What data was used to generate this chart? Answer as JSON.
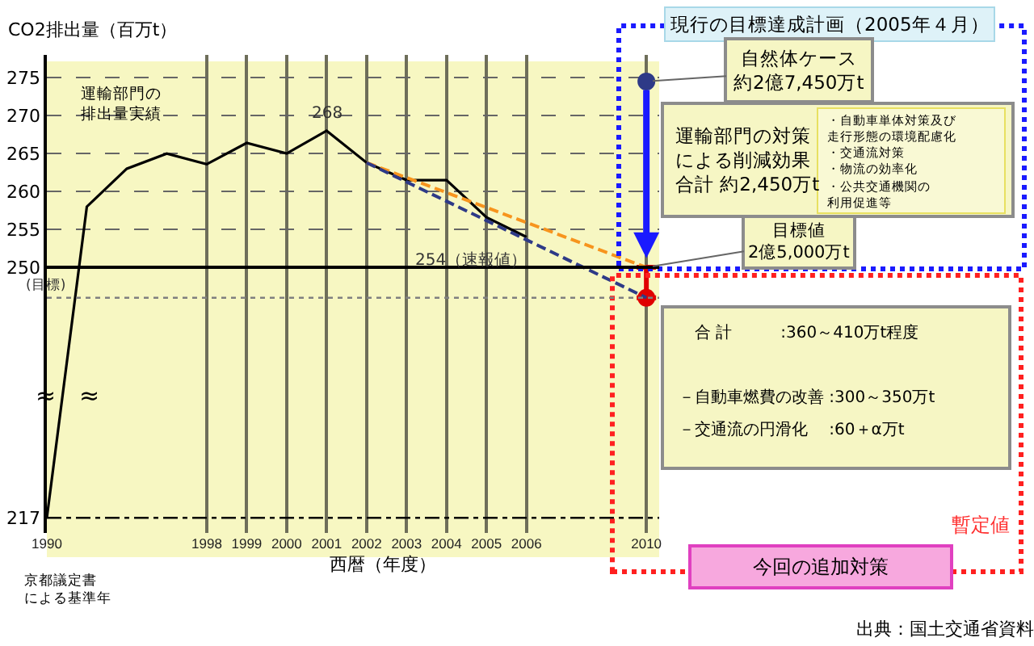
{
  "chart_data": {
    "type": "line",
    "ylabel": "CO2排出量（百万t）",
    "xlabel": "西暦（年度）",
    "categories": [
      "1990",
      null,
      null,
      null,
      "1998",
      "1999",
      "2000",
      "2001",
      "2002",
      "2003",
      "2004",
      "2005",
      "2006",
      null,
      null,
      "2010"
    ],
    "series": [
      {
        "color": "#000000",
        "values": [
          217,
          258,
          263,
          265,
          263.6,
          266.4,
          265,
          268,
          263.8,
          261.5,
          261.5,
          256.6,
          254,
          null,
          null,
          null
        ]
      },
      {
        "type": "scatter",
        "color": "#e00000",
        "marker": "circle",
        "values": [
          null,
          null,
          null,
          null,
          null,
          null,
          null,
          null,
          null,
          null,
          null,
          null,
          null,
          null,
          null,
          246
        ],
        "errors": [
          null,
          null,
          null,
          null,
          null,
          null,
          null,
          null,
          null,
          null,
          null,
          null,
          null,
          null,
          null,
          [
            246,
            250
          ]
        ]
      },
      {
        "color": "#f7941d",
        "line_style": "dashed",
        "values": [
          null,
          null,
          null,
          null,
          null,
          null,
          null,
          null,
          263.8,
          null,
          null,
          null,
          null,
          null,
          null,
          250
        ]
      },
      {
        "color": "#2e3a87",
        "line_style": "dashed",
        "values": [
          null,
          null,
          null,
          null,
          null,
          null,
          null,
          null,
          263.8,
          null,
          null,
          null,
          null,
          null,
          null,
          246
        ]
      },
      {
        "type": "scatter",
        "color": "#2e3a87",
        "marker": "circle",
        "values": [
          null,
          null,
          null,
          null,
          null,
          null,
          null,
          null,
          null,
          null,
          null,
          null,
          null,
          null,
          null,
          274.5
        ]
      }
    ],
    "ylim": [
      215,
      278
    ],
    "yticks": [
      217,
      250,
      255,
      260,
      265,
      270,
      275
    ],
    "ref_lines": [
      {
        "axis": "y",
        "value": 250,
        "label": "(目標)",
        "color": "#000000",
        "line_style": "solid"
      },
      {
        "axis": "y",
        "value": 246,
        "color": "#808080",
        "line_style": "dotted"
      },
      {
        "axis": "y",
        "value": 217,
        "color": "#000000",
        "line_style": "dashed"
      }
    ],
    "annotations": [
      {
        "text": "268",
        "x": "2001",
        "y": 268
      },
      {
        "text": "254（速報値）",
        "x": "2006",
        "y": 254
      },
      "運輸部門の排出量実績",
      "≈",
      "≈",
      "現行の目標達成計画（2005年４月）",
      {
        "text": "自然体ケース約2億7,450万t",
        "x": "2010",
        "y": 274.5
      },
      "運輸部門の対策による削減効果合計 約2,450万t",
      "・自動車単体対策及び走行形態の環境配慮化",
      "・交通流対策",
      "・物流の効率化",
      "・公共交通機関の利用促進等",
      {
        "text": "目標値2億5,000万t",
        "x": "2010",
        "y": 250
      },
      "合 計　　　:360～410万t程度",
      "－自動車燃費の改善 :300～350万t",
      "－交通流の円滑化　 :60＋α万t",
      "暫定値",
      "今回の追加対策",
      "京都議定書による基準年",
      "出典：国土交通省資料"
    ],
    "grid": true,
    "legend": false
  }
}
